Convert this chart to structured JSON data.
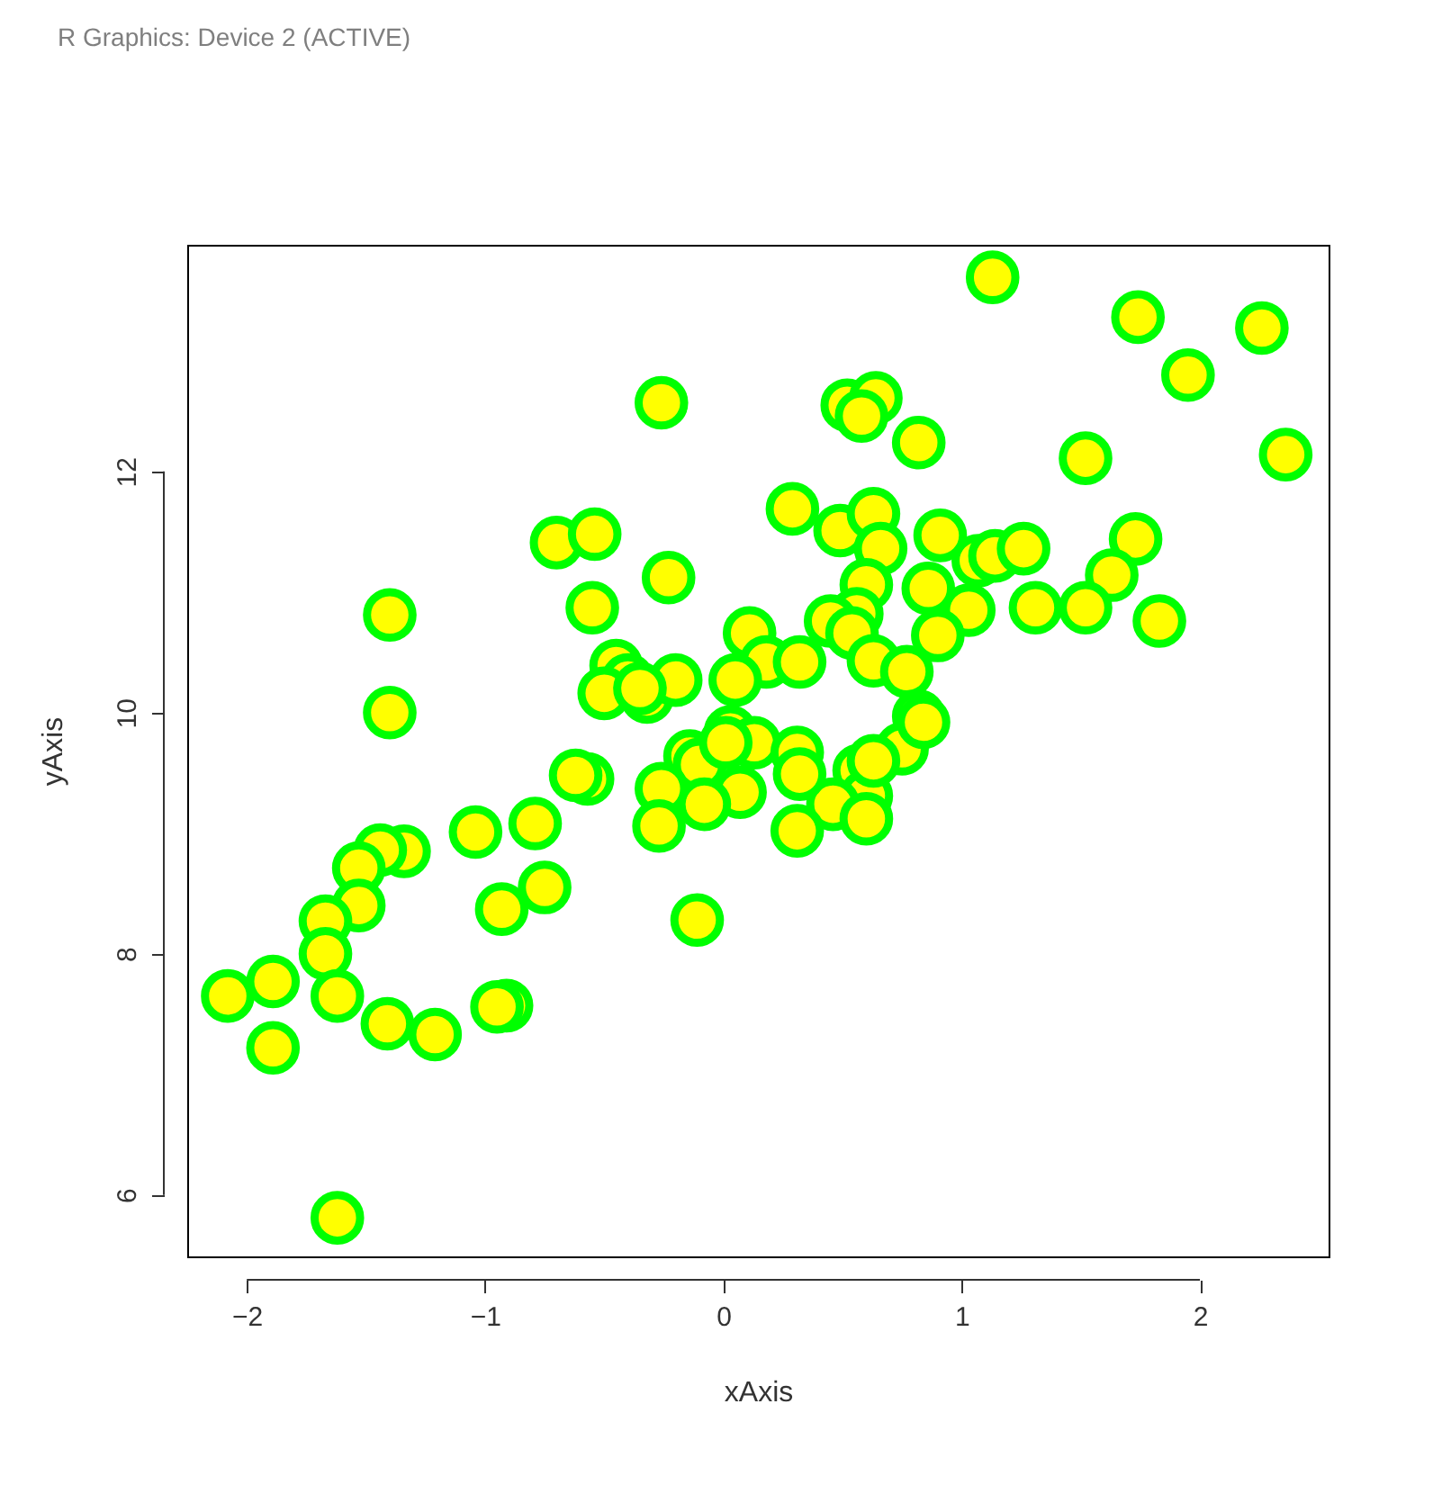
{
  "chart_data": {
    "type": "scatter",
    "title": "R Graphics: Device 2 (ACTIVE)",
    "xlabel": "xAxis",
    "ylabel": "yAxis",
    "xlim": [
      -2.25,
      2.54
    ],
    "ylim": [
      5.49,
      13.88
    ],
    "xticks": [
      -2,
      -1,
      0,
      1,
      2
    ],
    "yticks": [
      6,
      8,
      10,
      12
    ],
    "grid": false,
    "marker": "circle",
    "series": [
      {
        "color": "#ffff00",
        "x": [
          1.13,
          1.74,
          2.26,
          1.95,
          -0.26,
          0.52,
          0.64,
          0.58,
          0.82,
          1.52,
          2.36,
          0.29,
          0.49,
          0.63,
          0.66,
          0.91,
          1.07,
          1.14,
          1.26,
          1.73,
          1.63,
          0.86,
          0.6,
          1.03,
          1.31,
          1.52,
          1.83,
          0.56,
          0.45,
          0.54,
          0.9,
          0.11,
          0.18,
          0.32,
          0.63,
          0.77,
          0.82,
          -0.7,
          -0.54,
          -0.23,
          -0.55,
          -1.4,
          -1.4,
          0.05,
          -0.45,
          -0.4,
          -0.32,
          -0.5,
          -0.2,
          0.03,
          0.13,
          -0.14,
          -0.1,
          0.07,
          -0.08,
          -0.26,
          -0.27,
          -0.57,
          -0.62,
          -0.79,
          -1.04,
          -1.34,
          -1.44,
          -1.53,
          -1.53,
          -1.67,
          -1.67,
          -1.62,
          -1.89,
          -2.08,
          -1.89,
          -1.41,
          -1.21,
          -0.93,
          -0.75,
          -0.91,
          -0.95,
          -0.11,
          -1.62,
          0.75,
          0.57,
          0.6,
          0.46,
          0.31,
          0.32,
          0.31,
          0.6,
          0.63,
          0.84,
          -0.35,
          0.01
        ],
        "values": [
          13.61,
          13.28,
          13.19,
          12.8,
          12.57,
          12.55,
          12.61,
          12.46,
          12.24,
          12.11,
          12.14,
          11.69,
          11.51,
          11.65,
          11.36,
          11.47,
          11.26,
          11.3,
          11.36,
          11.44,
          11.14,
          11.03,
          11.06,
          10.85,
          10.87,
          10.87,
          10.76,
          10.82,
          10.76,
          10.66,
          10.64,
          10.66,
          10.42,
          10.42,
          10.43,
          10.34,
          9.97,
          11.41,
          11.48,
          11.12,
          10.87,
          10.81,
          10.0,
          10.27,
          10.39,
          10.27,
          10.13,
          10.16,
          10.27,
          9.84,
          9.75,
          9.64,
          9.57,
          9.34,
          9.24,
          9.37,
          9.06,
          9.45,
          9.48,
          9.08,
          9.01,
          8.85,
          8.86,
          8.71,
          8.4,
          8.27,
          8.0,
          7.65,
          7.77,
          7.65,
          7.22,
          7.42,
          7.33,
          8.37,
          8.55,
          7.57,
          7.56,
          8.28,
          5.81,
          9.7,
          9.52,
          9.31,
          9.24,
          9.67,
          9.49,
          9.02,
          9.12,
          9.6,
          9.92,
          10.2,
          9.75
        ]
      }
    ]
  }
}
